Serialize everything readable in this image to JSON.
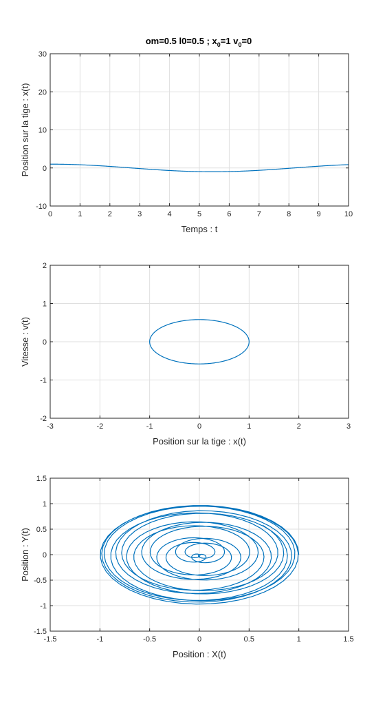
{
  "figure_title": {
    "prefix": "om=0.5   l0=0.5  ;  x",
    "sub1": "0",
    "mid": "=1  v",
    "sub2": "0",
    "suffix": "=0"
  },
  "colors": {
    "series": "#0072bd",
    "axis": "#262626",
    "grid": "#dfdfdf"
  },
  "chart_data": [
    {
      "type": "line",
      "title": "",
      "xlabel": "Temps : t",
      "ylabel": "Position sur la tige : x(t)",
      "xlim": [
        0,
        10
      ],
      "ylim": [
        -10,
        30
      ],
      "xticks": [
        0,
        1,
        2,
        3,
        4,
        5,
        6,
        7,
        8,
        9,
        10
      ],
      "yticks": [
        -10,
        0,
        10,
        20,
        30
      ],
      "grid": true,
      "series": [
        {
          "x": [
            0,
            1,
            2,
            3,
            4,
            5,
            6,
            7,
            8,
            9,
            10
          ],
          "y": [
            1,
            0.88,
            0.54,
            0.07,
            -0.42,
            -0.8,
            -0.99,
            -0.94,
            -0.65,
            -0.21,
            0.28
          ]
        }
      ]
    },
    {
      "type": "line",
      "title": "",
      "xlabel": "Position sur la tige : x(t)",
      "ylabel": "Vitesse : v(t)",
      "xlim": [
        -3,
        3
      ],
      "ylim": [
        -2,
        2
      ],
      "xticks": [
        -3,
        -2,
        -1,
        0,
        1,
        2,
        3
      ],
      "yticks": [
        -2,
        -1,
        0,
        1,
        2
      ],
      "grid": true,
      "series": [
        {
          "x": [
            1,
            0.71,
            0,
            -0.71,
            -1,
            -0.71,
            0,
            0.71,
            1
          ],
          "y": [
            0,
            -0.41,
            -0.58,
            -0.41,
            0,
            0.41,
            0.58,
            0.41,
            0
          ]
        }
      ]
    },
    {
      "type": "line",
      "title": "",
      "xlabel": "Position : X(t)",
      "ylabel": "Position : Y(t)",
      "xlim": [
        -1.5,
        1.5
      ],
      "ylim": [
        -1.5,
        1.5
      ],
      "xticks": [
        -1.5,
        -1,
        -0.5,
        0,
        0.5,
        1,
        1.5
      ],
      "yticks": [
        -1.5,
        -1,
        -0.5,
        0,
        0.5,
        1,
        1.5
      ],
      "grid": true,
      "series": [
        {
          "x": [
            1,
            0.5,
            0,
            -0.5,
            -1,
            -0.5,
            0,
            0.5,
            1
          ],
          "y": [
            0,
            0.92,
            0.97,
            0.92,
            0,
            -0.92,
            -0.97,
            -0.92,
            0
          ]
        }
      ]
    }
  ]
}
